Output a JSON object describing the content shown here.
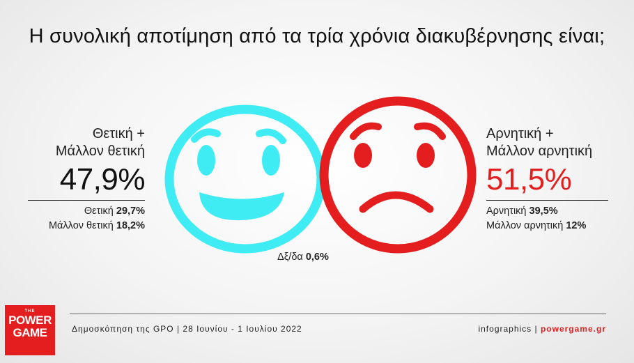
{
  "title": "Η συνολική αποτίμηση από τα τρία χρόνια διακυβέρνησης είναι;",
  "positive": {
    "label_line1": "Θετική +",
    "label_line2": "Μάλλον θετική",
    "total": "47,9%",
    "breakdown": [
      {
        "label": "Θετική",
        "value": "29,7%"
      },
      {
        "label": "Μάλλον θετική",
        "value": "18,2%"
      }
    ]
  },
  "negative": {
    "label_line1": "Αρνητική +",
    "label_line2": "Μάλλον αρνητική",
    "total": "51,5%",
    "breakdown": [
      {
        "label": "Αρνητική",
        "value": "39,5%"
      },
      {
        "label": "Μάλλον αρνητική",
        "value": "12%"
      }
    ]
  },
  "dk": {
    "label": "Δξ/δα",
    "value": "0,6%"
  },
  "footer": {
    "source": "Δημοσκόπηση της GPO | 28 Ιουνίου - 1 Ιουλίου 2022",
    "credit_prefix": "infographics | ",
    "credit_site": "powergame.gr"
  },
  "logo": {
    "line0": "THE",
    "line1": "POWER",
    "line2": "GAME"
  },
  "colors": {
    "positive": "#40ecf4",
    "negative": "#e41e1e",
    "accent": "#e41e1e"
  },
  "icons": {
    "positive": "happy-face-icon",
    "negative": "sad-face-icon"
  },
  "chart_data": {
    "type": "table",
    "title": "Η συνολική αποτίμηση από τα τρία χρόνια διακυβέρνησης είναι;",
    "categories": [
      "Θετική + Μάλλον θετική",
      "Αρνητική + Μάλλον αρνητική",
      "Δξ/δα"
    ],
    "values": [
      47.9,
      51.5,
      0.6
    ],
    "details": [
      {
        "name": "Θετική",
        "value": 29.7
      },
      {
        "name": "Μάλλον θετική",
        "value": 18.2
      },
      {
        "name": "Αρνητική",
        "value": 39.5
      },
      {
        "name": "Μάλλον αρνητική",
        "value": 12
      }
    ]
  }
}
